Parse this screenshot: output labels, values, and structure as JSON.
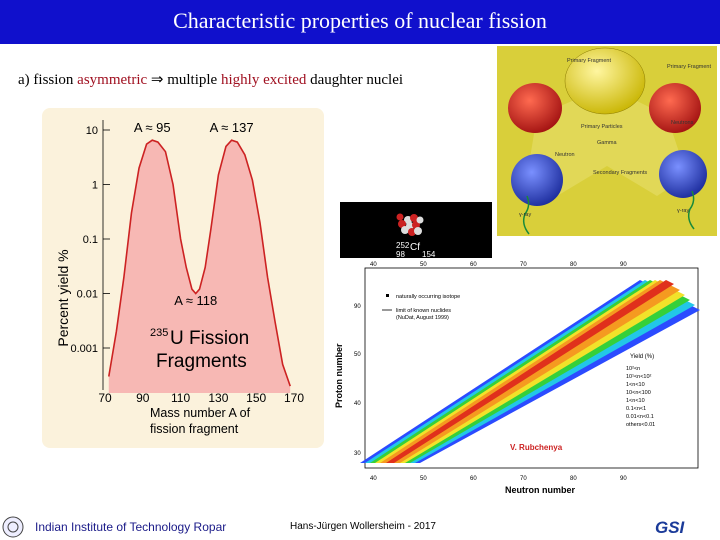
{
  "header": {
    "title": "Characteristic properties of nuclear fission"
  },
  "subtitle": {
    "prefix": "a)  fission ",
    "asym": "asymmetric",
    "arrow": "  ⇒ multiple ",
    "excited": "highly excited",
    "suffix": " daughter nuclei"
  },
  "chart_data": {
    "type": "area",
    "title": "",
    "annotation_main": "235U Fission Fragments",
    "xlabel": "Mass number A of fission fragment",
    "ylabel": "Percent yield %",
    "xlim": [
      70,
      170
    ],
    "ylim": [
      0.0002,
      10
    ],
    "y_scale": "log",
    "x_ticks": [
      70,
      90,
      110,
      130,
      150,
      170
    ],
    "y_ticks": [
      {
        "v": 10,
        "l": "10"
      },
      {
        "v": 1,
        "l": "1"
      },
      {
        "v": 0.1,
        "l": "0.1"
      },
      {
        "v": 0.01,
        "l": "0.01"
      },
      {
        "v": 0.001,
        "l": "0.001"
      }
    ],
    "peak_labels": [
      {
        "text": "A ≈ 95",
        "x": 95,
        "y": 10
      },
      {
        "text": "A ≈ 137",
        "x": 137,
        "y": 10
      },
      {
        "text": "A ≈ 118",
        "x": 118,
        "y": 0.005
      }
    ],
    "series": [
      {
        "x": [
          72,
          76,
          80,
          84,
          88,
          92,
          95,
          98,
          102,
          106,
          110,
          113,
          116,
          118,
          120,
          123,
          126,
          130,
          134,
          137,
          140,
          144,
          148,
          152,
          156,
          160,
          164,
          168
        ],
        "values": [
          0.0003,
          0.002,
          0.02,
          0.3,
          2,
          5.5,
          6.5,
          6,
          4,
          1,
          0.1,
          0.03,
          0.012,
          0.01,
          0.012,
          0.03,
          0.15,
          1.5,
          5,
          6.5,
          6,
          3.5,
          1.2,
          0.2,
          0.02,
          0.003,
          0.0005,
          0.0002
        ],
        "color": "#f7b8b4",
        "stroke": "#cc2222"
      }
    ]
  },
  "yield_labels": {
    "u235_sup": "235",
    "u_fission": "U Fission",
    "fragments": "Fragments",
    "xlabel_line1": "Mass number A of",
    "xlabel_line2": "fission fragment"
  },
  "illustration": {
    "primary_left": "Primary Fragment",
    "primary_right": "Primary Fragment",
    "primary_particles": "Primary Particles",
    "neutrons": "Neutrons",
    "x_rays": "X-rays",
    "neutron_mid": "Neutron",
    "gamma": "Gamma",
    "secondary": "Secondary Fragments",
    "gamma_left": "γ-ray",
    "gamma_right": "γ-ray"
  },
  "nucleus": {
    "label1": "252",
    "label2": "98",
    "label3": "Cf",
    "label4": "154"
  },
  "nuclide_chart": {
    "xlabel": "Neutron number",
    "ylabel": "Proton number",
    "x_ticks": [
      "40",
      "50",
      "60",
      "70",
      "80",
      "90"
    ],
    "y_ticks": [
      "30",
      "40",
      "50",
      "60",
      "70",
      "80",
      "90"
    ],
    "legend_stable": "naturally occurring isotope",
    "legend_known1": "limit of known nuclides",
    "legend_known2": "(NuDat, August 1999)",
    "yield_title": "Yield (%)",
    "yield_levels": [
      "10²<n",
      "10¹<n<10²",
      "1<n<10",
      "10<n<100",
      "1<n<10",
      "0.1<n<1",
      "0.01<n<0.1",
      "others<0.01"
    ],
    "credit": "V. Rubchenya"
  },
  "footer": {
    "institute": "Indian Institute of Technology Ropar",
    "author": "Hans-Jürgen Wollersheim - 2017",
    "logo": "GSI"
  }
}
